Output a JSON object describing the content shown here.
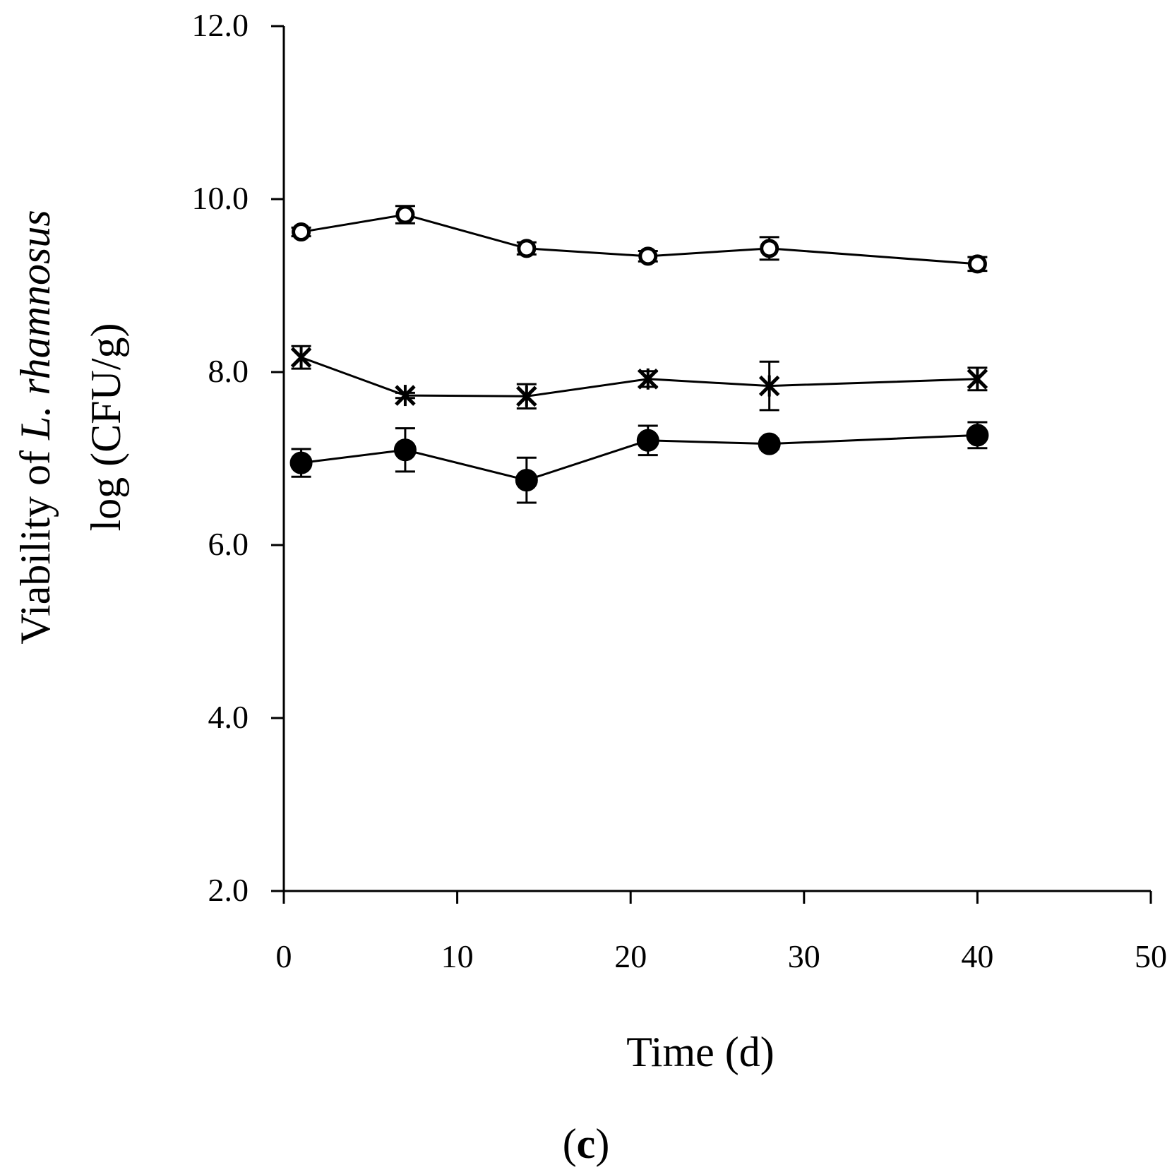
{
  "chart_data": {
    "type": "line",
    "title": "",
    "panel_label": {
      "open": "(",
      "letter": "c",
      "close": ")"
    },
    "xlabel": "Time (d)",
    "ylabel_line1": {
      "prefix": "Viability of ",
      "italic": "L. rhamnosus"
    },
    "ylabel_line2": "log (CFU/g)",
    "xlim": [
      0,
      50
    ],
    "ylim": [
      2.0,
      12.0
    ],
    "xticks": [
      "0",
      "10",
      "20",
      "30",
      "40",
      "50"
    ],
    "yticks": [
      "2.0",
      "4.0",
      "6.0",
      "8.0",
      "10.0",
      "12.0"
    ],
    "grid": false,
    "legend": "none",
    "x": [
      1,
      7,
      14,
      21,
      28,
      40
    ],
    "series": [
      {
        "name": "open-circle",
        "marker": "open-circle",
        "values": [
          9.62,
          9.82,
          9.43,
          9.34,
          9.43,
          9.25
        ],
        "errors": [
          0.05,
          0.1,
          0.07,
          0.06,
          0.13,
          0.08
        ]
      },
      {
        "name": "asterisk",
        "marker": "asterisk",
        "values": [
          8.17,
          7.73,
          7.72,
          7.92,
          7.84,
          7.92
        ],
        "errors": [
          0.13,
          0.03,
          0.14,
          0.09,
          0.28,
          0.13
        ]
      },
      {
        "name": "filled-circle",
        "marker": "filled-circle",
        "values": [
          6.95,
          7.1,
          6.75,
          7.21,
          7.17,
          7.27
        ],
        "errors": [
          0.16,
          0.25,
          0.26,
          0.17,
          0.06,
          0.15
        ]
      }
    ]
  }
}
